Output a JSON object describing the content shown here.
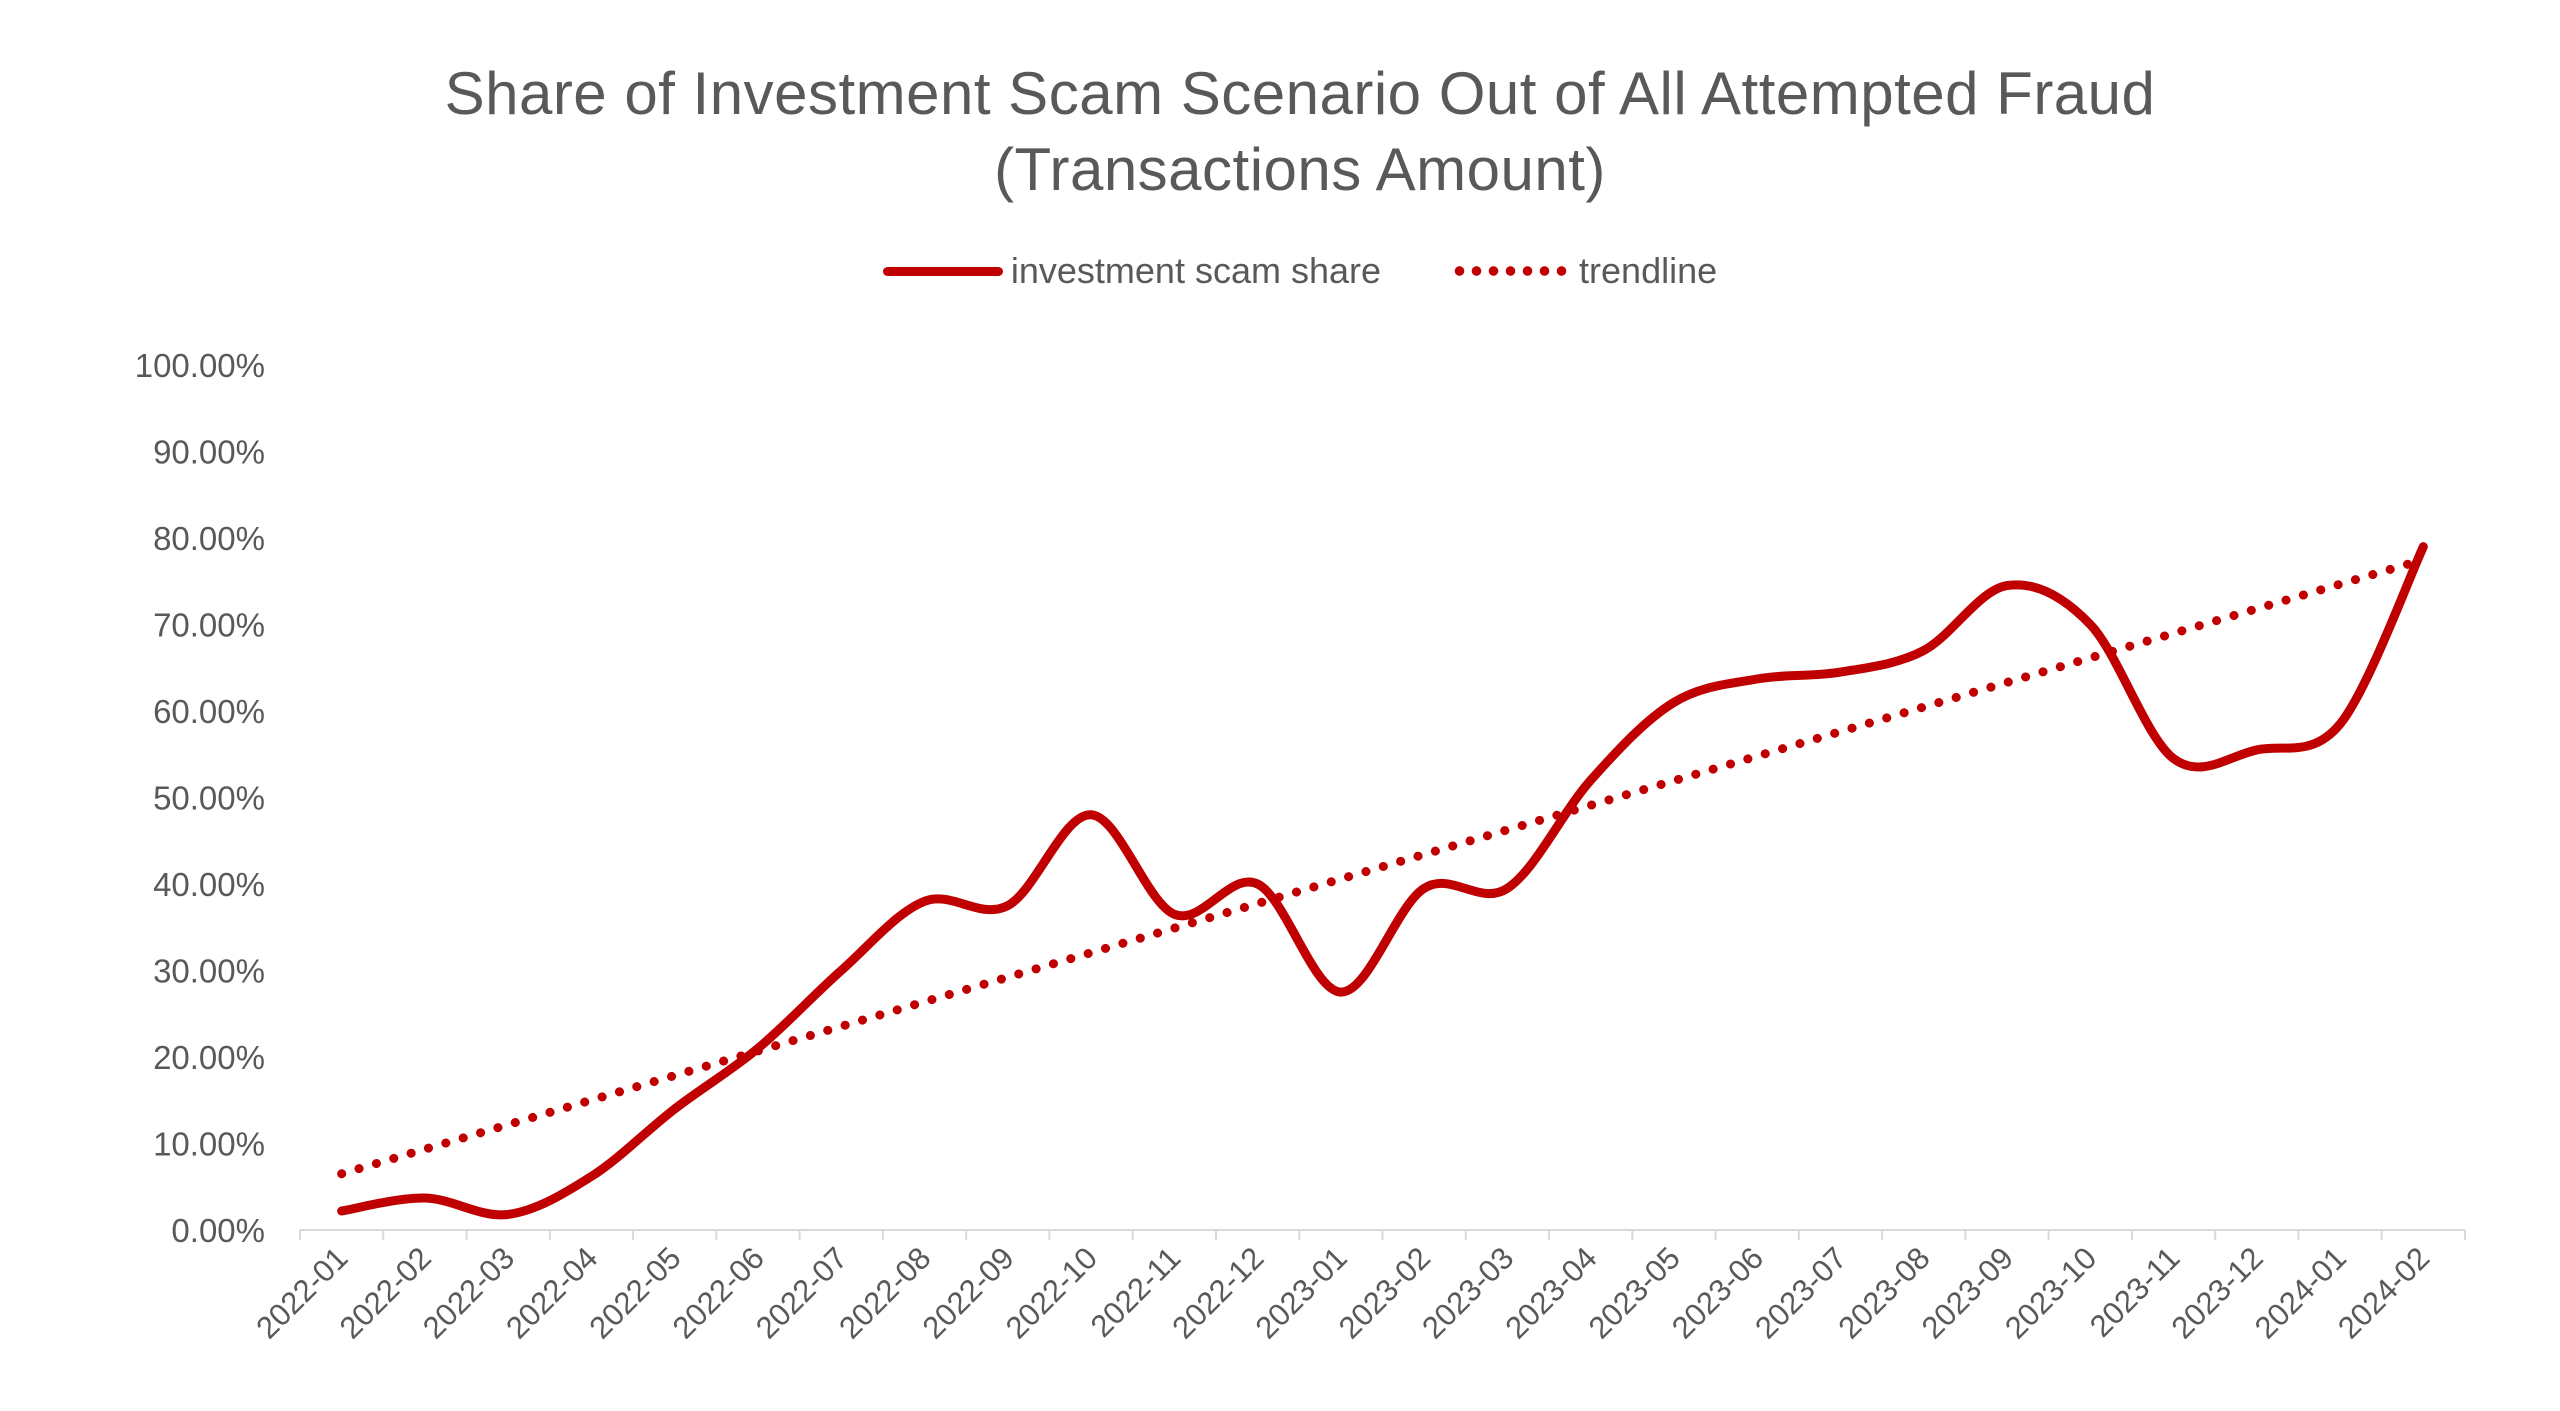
{
  "chart_data": {
    "type": "line",
    "title": "Share of Investment Scam Scenario Out of All Attempted Fraud",
    "subtitle": "(Transactions Amount)",
    "categories": [
      "2022-01",
      "2022-02",
      "2022-03",
      "2022-04",
      "2022-05",
      "2022-06",
      "2022-07",
      "2022-08",
      "2022-09",
      "2022-10",
      "2022-11",
      "2022-12",
      "2023-01",
      "2023-02",
      "2023-03",
      "2023-04",
      "2023-05",
      "2023-06",
      "2023-07",
      "2023-08",
      "2023-09",
      "2023-10",
      "2023-11",
      "2023-12",
      "2024-01",
      "2024-02"
    ],
    "series": [
      {
        "name": "investment scam share",
        "style": "solid",
        "color": "#c00000",
        "values": [
          0.022,
          0.037,
          0.018,
          0.062,
          0.14,
          0.21,
          0.3,
          0.38,
          0.375,
          0.48,
          0.365,
          0.4,
          0.275,
          0.395,
          0.395,
          0.52,
          0.61,
          0.637,
          0.645,
          0.67,
          0.745,
          0.7,
          0.545,
          0.555,
          0.585,
          0.79
        ]
      },
      {
        "name": "trendline",
        "style": "dotted",
        "color": "#c00000",
        "values": [
          0.065,
          0.0934,
          0.1218,
          0.1502,
          0.1786,
          0.207,
          0.2354,
          0.2638,
          0.2922,
          0.3206,
          0.349,
          0.3774,
          0.4058,
          0.4342,
          0.4626,
          0.491,
          0.5194,
          0.5478,
          0.5762,
          0.6046,
          0.633,
          0.6614,
          0.6898,
          0.7182,
          0.7466,
          0.775
        ]
      }
    ],
    "yticks": [
      "0.00%",
      "10.00%",
      "20.00%",
      "30.00%",
      "40.00%",
      "50.00%",
      "60.00%",
      "70.00%",
      "80.00%",
      "90.00%",
      "100.00%"
    ],
    "ylim": [
      0,
      1
    ],
    "grid": false,
    "legend_position": "top-center"
  }
}
